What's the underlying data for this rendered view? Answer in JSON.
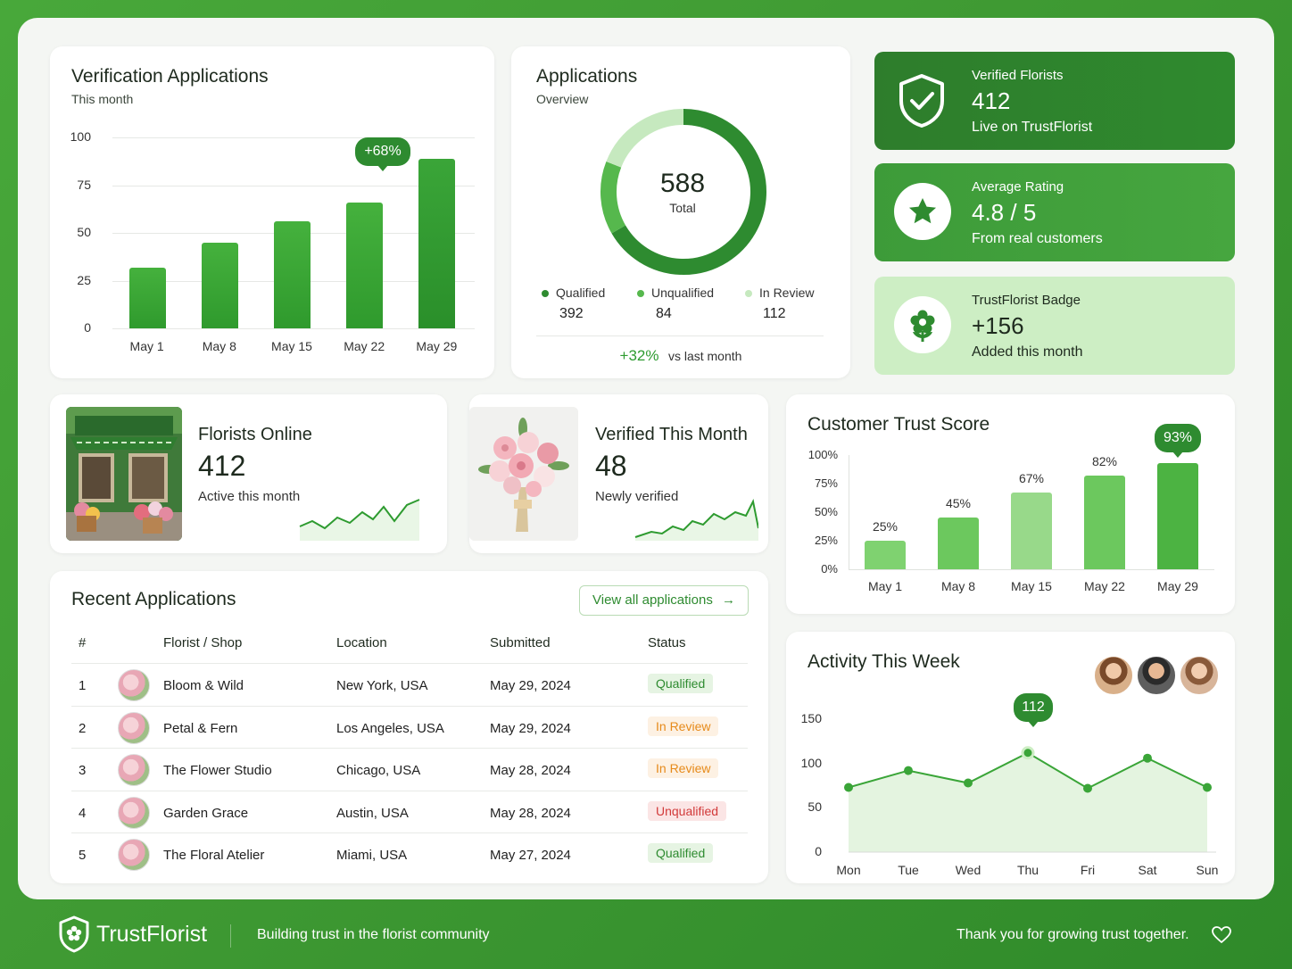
{
  "verification": {
    "title": "Verification Applications",
    "subtitle": "This month",
    "y_ticks": [
      "100",
      "75",
      "50",
      "25",
      "0"
    ],
    "categories": [
      "May 1",
      "May 8",
      "May 15",
      "May 22",
      "May 29"
    ],
    "values": [
      32,
      45,
      56,
      66,
      89
    ],
    "callout": "+68%"
  },
  "applications": {
    "title": "Applications",
    "subtitle": "Overview",
    "total": "588",
    "total_label": "Total",
    "legend": [
      {
        "label": "Qualified",
        "value": "392",
        "color": "#2e8b30"
      },
      {
        "label": "Unqualified",
        "value": "84",
        "color": "#56b84d"
      },
      {
        "label": "In Review",
        "value": "112",
        "color": "#c6e9bf"
      }
    ],
    "change": "+32%",
    "change_label": "vs last month"
  },
  "tiles": [
    {
      "label": "Verified Florists",
      "value": "412",
      "sub": "Live on TrustFlorist",
      "icon": "shield-check-icon"
    },
    {
      "label": "Average Rating",
      "value": "4.8 / 5",
      "sub": "From real customers",
      "icon": "star-icon"
    },
    {
      "label": "TrustFlorist Badge",
      "value": "+156",
      "sub": "Added this month",
      "icon": "flower-icon"
    }
  ],
  "florists_online": {
    "title": "Florists Online",
    "value": "412",
    "sub": "Active this month"
  },
  "verified_month": {
    "title": "Verified This Month",
    "value": "48",
    "sub": "Newly verified"
  },
  "trust_score": {
    "title": "Customer Trust Score",
    "y_ticks": [
      "100%",
      "75%",
      "50%",
      "25%",
      "0%"
    ],
    "categories": [
      "May 1",
      "May 8",
      "May 15",
      "May 22",
      "May 29"
    ],
    "values": [
      25,
      45,
      67,
      82,
      93
    ],
    "labels": [
      "25%",
      "45%",
      "67%",
      "82%",
      "93%"
    ]
  },
  "recent": {
    "title": "Recent Applications",
    "view_all": "View all applications",
    "headers": [
      "#",
      "Florist / Shop",
      "Location",
      "Submitted",
      "Status"
    ],
    "rows": [
      {
        "n": "1",
        "shop": "Bloom & Wild",
        "location": "New York, USA",
        "date": "May 29, 2024",
        "status": "Qualified"
      },
      {
        "n": "2",
        "shop": "Petal & Fern",
        "location": "Los Angeles, USA",
        "date": "May 29, 2024",
        "status": "In Review"
      },
      {
        "n": "3",
        "shop": "The Flower Studio",
        "location": "Chicago, USA",
        "date": "May 28, 2024",
        "status": "In Review"
      },
      {
        "n": "4",
        "shop": "Garden Grace",
        "location": "Austin, USA",
        "date": "May 28, 2024",
        "status": "Unqualified"
      },
      {
        "n": "5",
        "shop": "The Floral Atelier",
        "location": "Miami, USA",
        "date": "May 27, 2024",
        "status": "Qualified"
      }
    ]
  },
  "activity": {
    "title": "Activity This Week",
    "y_ticks": [
      "150",
      "100",
      "50",
      "0"
    ],
    "categories": [
      "Mon",
      "Tue",
      "Wed",
      "Thu",
      "Fri",
      "Sat",
      "Sun"
    ],
    "values": [
      73,
      92,
      78,
      112,
      72,
      106,
      73
    ],
    "callout": "112"
  },
  "footer": {
    "brand": "TrustFlorist",
    "tagline": "Building trust in the florist community",
    "thanks": "Thank you for growing trust together."
  },
  "chart_data": [
    {
      "type": "bar",
      "title": "Verification Applications",
      "subtitle": "This month",
      "categories": [
        "May 1",
        "May 8",
        "May 15",
        "May 22",
        "May 29"
      ],
      "values": [
        32,
        45,
        56,
        66,
        89
      ],
      "ylim": [
        0,
        100
      ],
      "annotations": [
        "+68%"
      ]
    },
    {
      "type": "pie",
      "title": "Applications",
      "categories": [
        "Qualified",
        "Unqualified",
        "In Review"
      ],
      "values": [
        392,
        84,
        112
      ]
    },
    {
      "type": "bar",
      "title": "Customer Trust Score",
      "categories": [
        "May 1",
        "May 8",
        "May 15",
        "May 22",
        "May 29"
      ],
      "values": [
        25,
        45,
        67,
        82,
        93
      ],
      "ylim": [
        0,
        100
      ]
    },
    {
      "type": "line",
      "title": "Activity This Week",
      "x": [
        "Mon",
        "Tue",
        "Wed",
        "Thu",
        "Fri",
        "Sat",
        "Sun"
      ],
      "values": [
        73,
        92,
        78,
        112,
        72,
        106,
        73
      ],
      "ylim": [
        0,
        150
      ]
    }
  ]
}
